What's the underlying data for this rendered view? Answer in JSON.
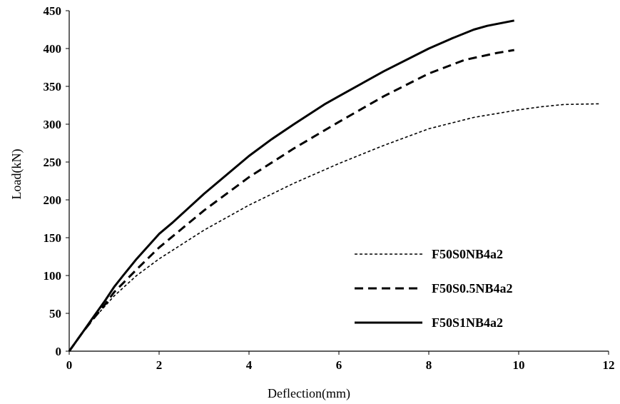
{
  "chart_data": {
    "type": "line",
    "title": "",
    "xlabel": "Deflection(mm)",
    "ylabel": "Load(kN)",
    "xlim": [
      0,
      12
    ],
    "ylim": [
      0,
      450
    ],
    "xticks": [
      0,
      2,
      4,
      6,
      8,
      10,
      12
    ],
    "yticks": [
      0,
      50,
      100,
      150,
      200,
      250,
      300,
      350,
      400,
      450
    ],
    "grid": false,
    "legend_position": "right-bottom",
    "series": [
      {
        "name": "F50S0NB4a2",
        "style": "short-dash",
        "color": "#000000",
        "x": [
          0,
          0.5,
          1,
          1.5,
          2,
          3,
          4,
          5,
          6,
          7,
          8,
          9,
          10,
          10.5,
          11,
          11.8
        ],
        "y": [
          0,
          40,
          73,
          100,
          122,
          160,
          193,
          222,
          248,
          272,
          294,
          309,
          319,
          323,
          326,
          327
        ]
      },
      {
        "name": "F50S0.5NB4a2",
        "style": "long-dash",
        "color": "#000000",
        "x": [
          0,
          0.3,
          0.5,
          0.8,
          1.0,
          1.5,
          2,
          3,
          4,
          5,
          6,
          7,
          8,
          8.8,
          9.5,
          9.9
        ],
        "y": [
          0,
          25,
          40,
          62,
          78,
          108,
          137,
          186,
          230,
          268,
          303,
          337,
          367,
          385,
          394,
          398
        ]
      },
      {
        "name": "F50S1NB4a2",
        "style": "solid",
        "color": "#000000",
        "x": [
          0,
          0.3,
          0.5,
          0.8,
          1.0,
          1.2,
          1.5,
          2,
          2.3,
          3,
          4,
          4.5,
          5,
          5.7,
          6,
          7,
          8,
          8.5,
          9,
          9.3,
          9.9
        ],
        "y": [
          0,
          25,
          42,
          67,
          85,
          100,
          122,
          155,
          170,
          208,
          258,
          280,
          300,
          327,
          337,
          370,
          400,
          413,
          425,
          430,
          437
        ]
      }
    ]
  }
}
